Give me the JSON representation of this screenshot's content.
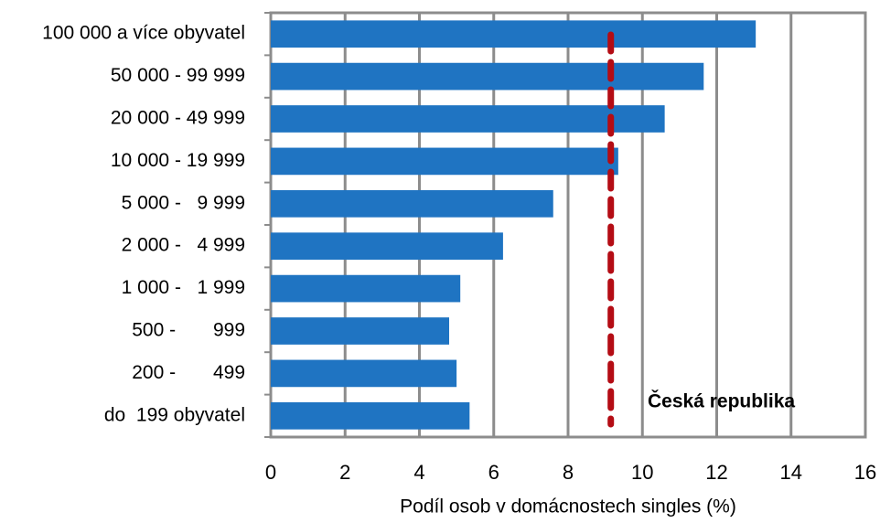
{
  "chart_data": {
    "type": "hbar",
    "categories": [
      "100 000 a více obyvatel",
      "50 000 - 99 999",
      "20 000 - 49 999",
      "10 000 - 19 999",
      "5 000 -   9 999",
      "2 000 -   4 999",
      "1 000 -   1 999",
      "500 -       999",
      "200 -       499",
      "do  199 obyvatel"
    ],
    "values": [
      13.05,
      11.65,
      10.6,
      9.35,
      7.6,
      6.25,
      5.1,
      4.8,
      5.0,
      5.35
    ],
    "color": "#1f74c2",
    "xlabel": "Podíl osob v domácnostech singles (%)",
    "xlim": [
      0,
      16
    ],
    "xticks": [
      0,
      2,
      4,
      6,
      8,
      10,
      12,
      14,
      16
    ],
    "grid": true,
    "reference_line": {
      "value": 9.15,
      "label": "Česká republika",
      "color": "#b40c14"
    }
  }
}
